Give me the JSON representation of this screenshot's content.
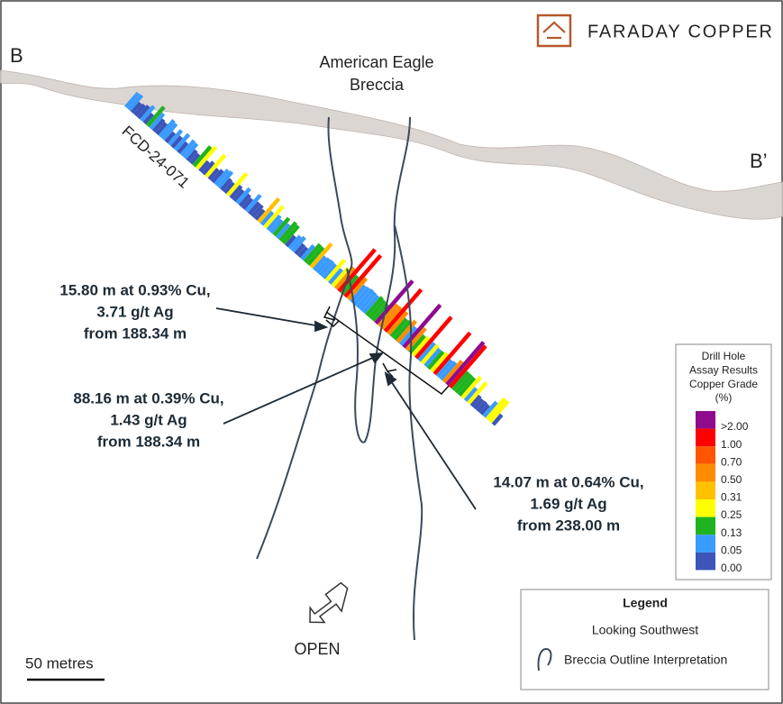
{
  "header": {
    "company": "FARADAY COPPER"
  },
  "section": {
    "start": "B",
    "end": "B’"
  },
  "breccia_label": [
    "American Eagle",
    "Breccia"
  ],
  "drill_hole": "FCD-24-071",
  "intercepts": [
    [
      "15.80 m at 0.93% Cu,",
      "3.71 g/t Ag",
      "from 188.34 m"
    ],
    [
      "88.16 m at 0.39% Cu,",
      "1.43 g/t Ag",
      "from 188.34 m"
    ],
    [
      "14.07 m at 0.64% Cu,",
      "1.69 g/t Ag",
      "from 238.00 m"
    ]
  ],
  "open_label": "OPEN",
  "scale_label": "50 metres",
  "grade_legend": {
    "title": [
      "Drill Hole",
      "Assay Results",
      "Copper Grade",
      "(%)"
    ],
    "items": [
      {
        "label": ">2.00",
        "color": "#8e0b8e"
      },
      {
        "label": "1.00",
        "color": "#ff0000"
      },
      {
        "label": "0.70",
        "color": "#ff5500"
      },
      {
        "label": "0.50",
        "color": "#ff8c00"
      },
      {
        "label": "0.31",
        "color": "#ffc000"
      },
      {
        "label": "0.25",
        "color": "#ffff00"
      },
      {
        "label": "0.13",
        "color": "#1fb31f"
      },
      {
        "label": "0.05",
        "color": "#3a9bff"
      },
      {
        "label": "0.00",
        "color": "#3b55b8"
      }
    ]
  },
  "legend": {
    "title": "Legend",
    "view": "Looking Southwest",
    "outline": "Breccia Outline Interpretation"
  }
}
